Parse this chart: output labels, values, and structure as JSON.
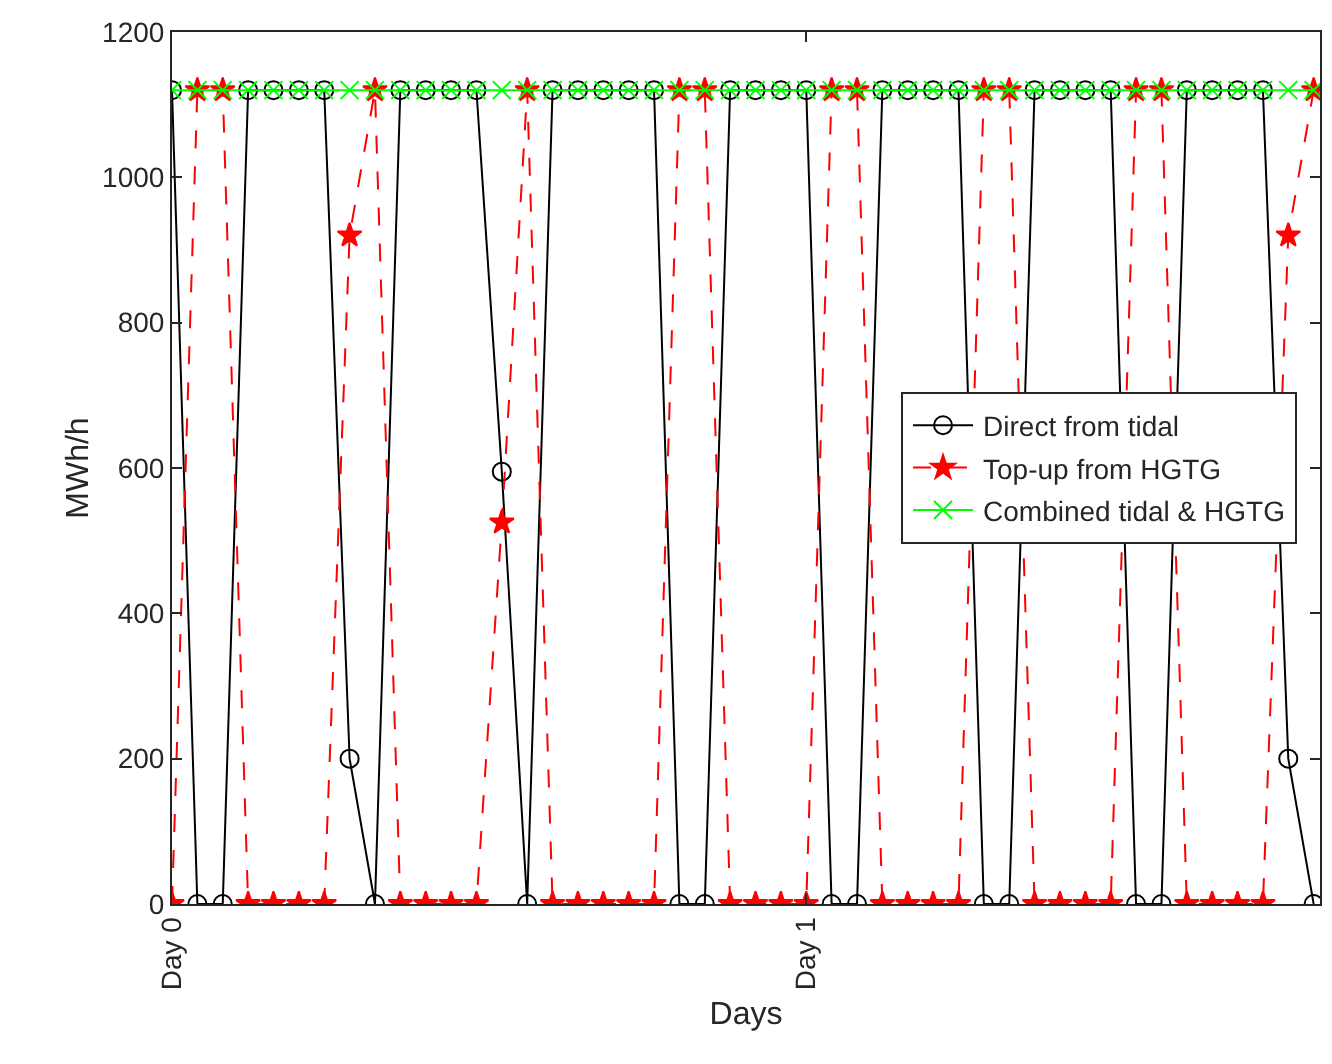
{
  "chart_data": {
    "type": "line",
    "xlabel": "Days",
    "ylabel": "MWh/h",
    "categories": [
      "Day 0",
      null,
      null,
      null,
      null,
      null,
      null,
      null,
      null,
      null,
      null,
      null,
      null,
      null,
      null,
      null,
      null,
      null,
      null,
      null,
      null,
      null,
      null,
      null,
      null,
      "Day 1",
      null,
      null,
      null,
      null,
      null,
      null,
      null,
      null,
      null,
      null,
      null,
      null,
      null,
      null,
      null,
      null,
      null,
      null,
      null,
      null
    ],
    "ylim": [
      0,
      1200
    ],
    "yticks": [
      0,
      200,
      400,
      600,
      800,
      1000,
      1200
    ],
    "grid": false,
    "legend": "right",
    "series": [
      {
        "name": "Direct from tidal",
        "color": "#000000",
        "marker": "circle",
        "line_style": "solid",
        "values": [
          1120,
          0,
          0,
          1120,
          1120,
          1120,
          1120,
          200,
          0,
          1120,
          1120,
          1120,
          1120,
          595,
          0,
          1120,
          1120,
          1120,
          1120,
          1120,
          0,
          0,
          1120,
          1120,
          1120,
          1120,
          0,
          0,
          1120,
          1120,
          1120,
          1120,
          0,
          0,
          1120,
          1120,
          1120,
          1120,
          0,
          0,
          1120,
          1120,
          1120,
          1120,
          200,
          0
        ]
      },
      {
        "name": "Top-up from HGTG",
        "color": "#ff0000",
        "marker": "star",
        "line_style": "dashed",
        "values": [
          0,
          1120,
          1120,
          0,
          0,
          0,
          0,
          920,
          1120,
          0,
          0,
          0,
          0,
          525,
          1120,
          0,
          0,
          0,
          0,
          0,
          1120,
          1120,
          0,
          0,
          0,
          0,
          1120,
          1120,
          0,
          0,
          0,
          0,
          1120,
          1120,
          0,
          0,
          0,
          0,
          1120,
          1120,
          0,
          0,
          0,
          0,
          920,
          1120
        ]
      },
      {
        "name": "Combined tidal & HGTG",
        "color": "#00ff00",
        "marker": "cross",
        "line_style": "solid",
        "values": [
          1120,
          1120,
          1120,
          1120,
          1120,
          1120,
          1120,
          1120,
          1120,
          1120,
          1120,
          1120,
          1120,
          1120,
          1120,
          1120,
          1120,
          1120,
          1120,
          1120,
          1120,
          1120,
          1120,
          1120,
          1120,
          1120,
          1120,
          1120,
          1120,
          1120,
          1120,
          1120,
          1120,
          1120,
          1120,
          1120,
          1120,
          1120,
          1120,
          1120,
          1120,
          1120,
          1120,
          1120,
          1120,
          1120
        ]
      }
    ]
  }
}
